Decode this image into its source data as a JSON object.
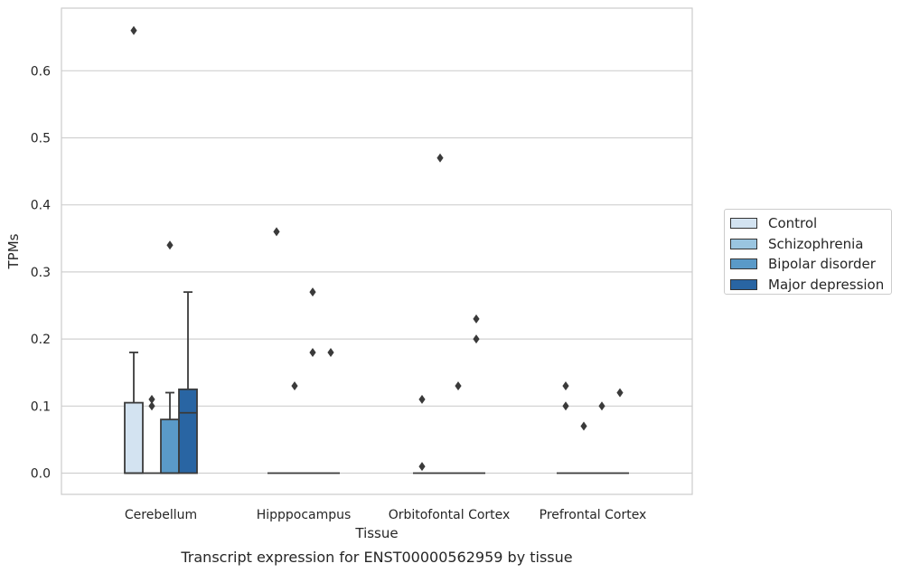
{
  "chart_data": {
    "type": "box",
    "title": "",
    "caption": "Transcript expression for ENST00000562959 by tissue",
    "xlabel": "Tissue",
    "ylabel": "TPMs",
    "ylim": [
      -0.033,
      0.693
    ],
    "yticks": [
      "0.0",
      "0.1",
      "0.2",
      "0.3",
      "0.4",
      "0.5",
      "0.6"
    ],
    "grid": true,
    "legend_position": "right",
    "categories": [
      "Cerebellum",
      "Hipppocampus",
      "Orbitofontal Cortex",
      "Prefrontal Cortex"
    ],
    "series": [
      {
        "name": "Control",
        "color": "#d3e3f1",
        "boxes": [
          {
            "q1": 0.0,
            "median": 0.0,
            "q3": 0.105,
            "whisker_low": 0.0,
            "whisker_high": 0.18,
            "outliers": [
              0.66
            ]
          },
          {
            "q1": 0.0,
            "median": 0.0,
            "q3": 0.0,
            "whisker_low": 0.0,
            "whisker_high": 0.0,
            "outliers": [
              0.36
            ]
          },
          {
            "q1": 0.0,
            "median": 0.0,
            "q3": 0.0,
            "whisker_low": 0.0,
            "whisker_high": 0.0,
            "outliers": [
              0.11,
              0.01
            ]
          },
          {
            "q1": 0.0,
            "median": 0.0,
            "q3": 0.0,
            "whisker_low": 0.0,
            "whisker_high": 0.0,
            "outliers": [
              0.13,
              0.1
            ]
          }
        ]
      },
      {
        "name": "Schizophrenia",
        "color": "#9ac5e0",
        "boxes": [
          {
            "q1": 0.0,
            "median": 0.0,
            "q3": 0.0,
            "whisker_low": 0.0,
            "whisker_high": 0.0,
            "outliers": [
              0.11,
              0.1
            ]
          },
          {
            "q1": 0.0,
            "median": 0.0,
            "q3": 0.0,
            "whisker_low": 0.0,
            "whisker_high": 0.0,
            "outliers": [
              0.13
            ]
          },
          {
            "q1": 0.0,
            "median": 0.0,
            "q3": 0.0,
            "whisker_low": 0.0,
            "whisker_high": 0.0,
            "outliers": [
              0.47
            ]
          },
          {
            "q1": 0.0,
            "median": 0.0,
            "q3": 0.0,
            "whisker_low": 0.0,
            "whisker_high": 0.0,
            "outliers": [
              0.07
            ]
          }
        ]
      },
      {
        "name": "Bipolar disorder",
        "color": "#5a9ac8",
        "boxes": [
          {
            "q1": 0.0,
            "median": 0.0,
            "q3": 0.08,
            "whisker_low": 0.0,
            "whisker_high": 0.12,
            "outliers": [
              0.34
            ]
          },
          {
            "q1": 0.0,
            "median": 0.0,
            "q3": 0.0,
            "whisker_low": 0.0,
            "whisker_high": 0.0,
            "outliers": [
              0.27,
              0.18
            ]
          },
          {
            "q1": 0.0,
            "median": 0.0,
            "q3": 0.0,
            "whisker_low": 0.0,
            "whisker_high": 0.0,
            "outliers": [
              0.13
            ]
          },
          {
            "q1": 0.0,
            "median": 0.0,
            "q3": 0.0,
            "whisker_low": 0.0,
            "whisker_high": 0.0,
            "outliers": [
              0.1
            ]
          }
        ]
      },
      {
        "name": "Major depression",
        "color": "#2965a3",
        "boxes": [
          {
            "q1": 0.0,
            "median": 0.09,
            "q3": 0.125,
            "whisker_low": 0.0,
            "whisker_high": 0.27,
            "outliers": []
          },
          {
            "q1": 0.0,
            "median": 0.0,
            "q3": 0.0,
            "whisker_low": 0.0,
            "whisker_high": 0.0,
            "outliers": [
              0.18
            ]
          },
          {
            "q1": 0.0,
            "median": 0.0,
            "q3": 0.0,
            "whisker_low": 0.0,
            "whisker_high": 0.0,
            "outliers": [
              0.23,
              0.2
            ]
          },
          {
            "q1": 0.0,
            "median": 0.0,
            "q3": 0.0,
            "whisker_low": 0.0,
            "whisker_high": 0.0,
            "outliers": [
              0.12
            ]
          }
        ]
      }
    ]
  }
}
